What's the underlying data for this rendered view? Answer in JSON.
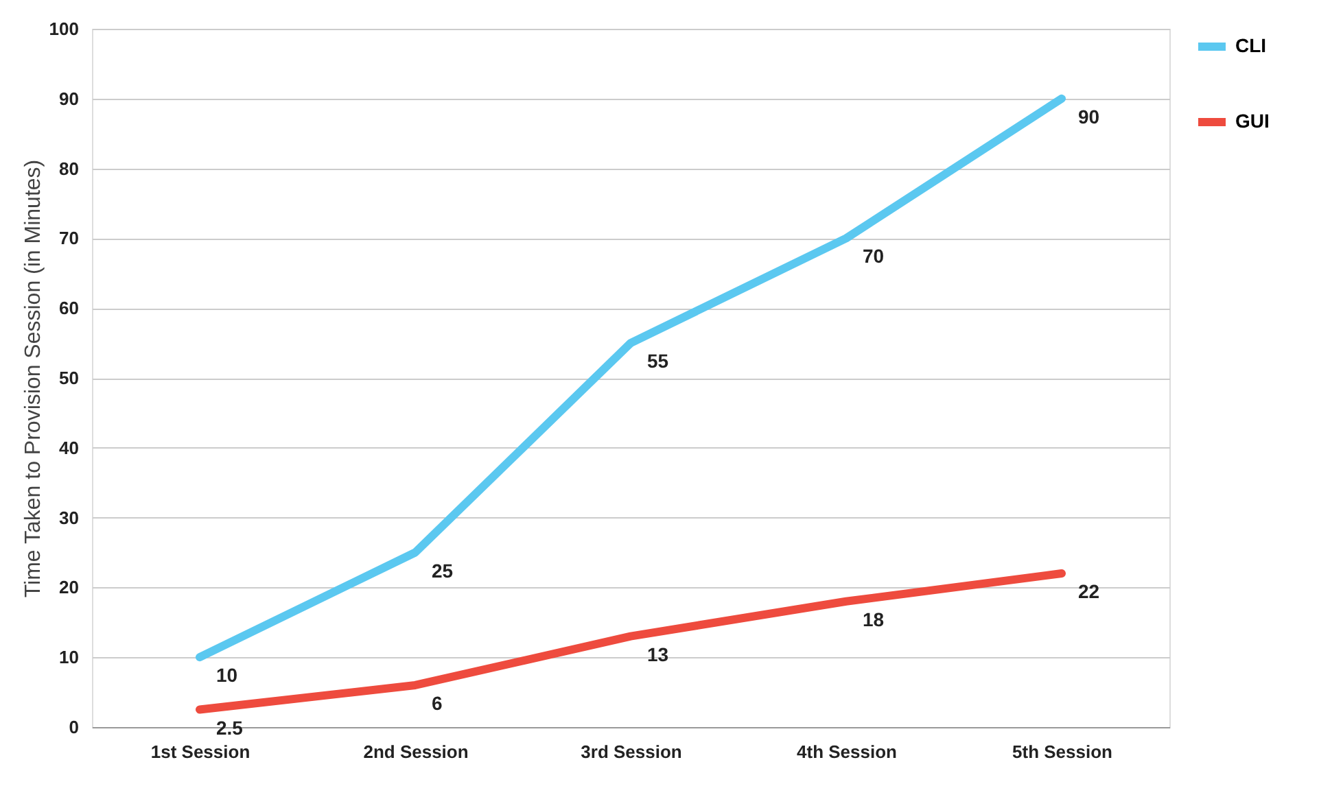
{
  "chart_data": {
    "type": "line",
    "ylabel": "Time Taken to Provision Session (in Minutes)",
    "categories": [
      "1st Session",
      "2nd Session",
      "3rd Session",
      "4th Session",
      "5th Session"
    ],
    "series": [
      {
        "name": "CLI",
        "color": "#5bc8f0",
        "values": [
          10,
          25,
          55,
          70,
          90
        ]
      },
      {
        "name": "GUI",
        "color": "#ee4b3e",
        "values": [
          2.5,
          6,
          13,
          18,
          22
        ]
      }
    ],
    "ylim": [
      0,
      100
    ],
    "yticks": [
      0,
      10,
      20,
      30,
      40,
      50,
      60,
      70,
      80,
      90,
      100
    ],
    "grid": "y",
    "legend": "right",
    "data_labels": true,
    "marker": "none",
    "line_style": "solid"
  }
}
